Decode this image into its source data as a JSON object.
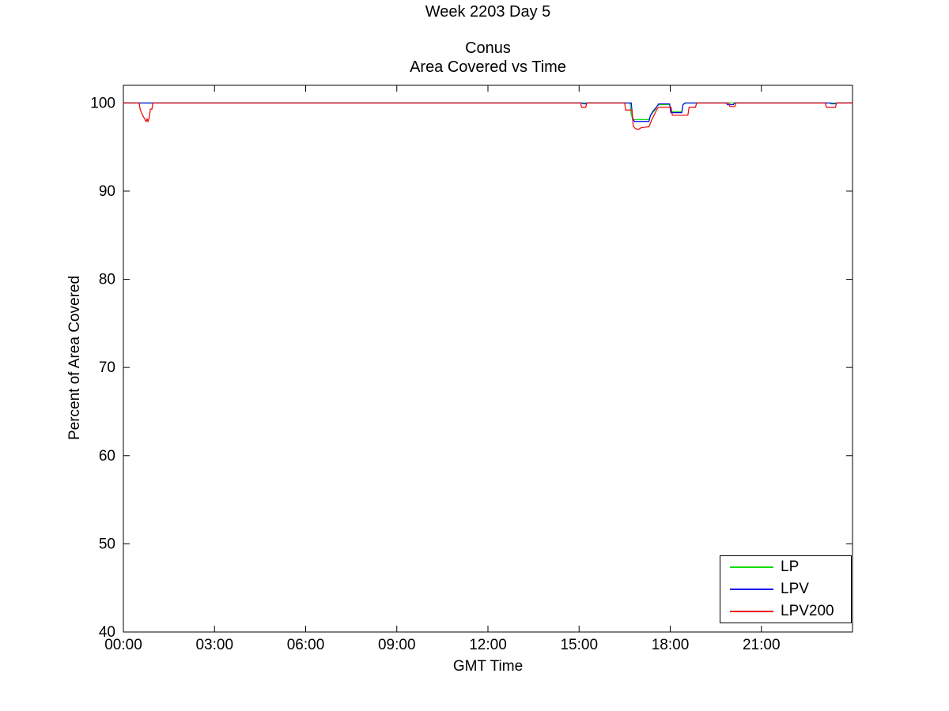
{
  "page": {
    "background": "#ffffff"
  },
  "titles": {
    "suptitle": "Week 2203 Day 5",
    "title_line1": "Conus",
    "title_line2": "Area Covered vs Time"
  },
  "axes": {
    "xlabel": "GMT Time",
    "ylabel": "Percent of Area Covered",
    "x_ticks": [
      {
        "hour": 0,
        "label": "00:00"
      },
      {
        "hour": 3,
        "label": "03:00"
      },
      {
        "hour": 6,
        "label": "06:00"
      },
      {
        "hour": 9,
        "label": "09:00"
      },
      {
        "hour": 12,
        "label": "12:00"
      },
      {
        "hour": 15,
        "label": "15:00"
      },
      {
        "hour": 18,
        "label": "18:00"
      },
      {
        "hour": 21,
        "label": "21:00"
      }
    ],
    "y_ticks": [
      40,
      50,
      60,
      70,
      80,
      90,
      100
    ],
    "axis_color": "#000000"
  },
  "chart_data": {
    "type": "line",
    "title": "Conus — Area Covered vs Time (Week 2203 Day 5)",
    "xlabel": "GMT Time",
    "ylabel": "Percent of Area Covered",
    "xlim": [
      0,
      24
    ],
    "ylim": [
      40,
      102
    ],
    "x_unit": "hours GMT",
    "grid": false,
    "legend_position": "bottom-right",
    "series": [
      {
        "name": "LP",
        "color": "#00dd00",
        "points": [
          [
            0,
            100
          ],
          [
            16.68,
            100
          ],
          [
            16.71,
            98.8
          ],
          [
            16.76,
            98.2
          ],
          [
            16.82,
            98.1
          ],
          [
            17.3,
            98.1
          ],
          [
            17.34,
            98.5
          ],
          [
            17.42,
            98.9
          ],
          [
            17.5,
            99.2
          ],
          [
            17.56,
            99.6
          ],
          [
            17.62,
            99.8
          ],
          [
            17.98,
            99.8
          ],
          [
            18.02,
            99.0
          ],
          [
            18.38,
            99.0
          ],
          [
            18.42,
            99.8
          ],
          [
            18.47,
            100
          ],
          [
            24,
            100
          ]
        ]
      },
      {
        "name": "LPV",
        "color": "#0000ee",
        "points": [
          [
            0,
            100
          ],
          [
            15.1,
            100
          ],
          [
            15.13,
            99.9
          ],
          [
            15.22,
            99.9
          ],
          [
            15.25,
            100
          ],
          [
            16.72,
            100
          ],
          [
            16.76,
            98.3
          ],
          [
            16.82,
            97.9
          ],
          [
            17.3,
            97.9
          ],
          [
            17.35,
            98.6
          ],
          [
            17.44,
            99.1
          ],
          [
            17.54,
            99.5
          ],
          [
            17.62,
            99.9
          ],
          [
            17.98,
            99.9
          ],
          [
            18.02,
            98.9
          ],
          [
            18.38,
            98.9
          ],
          [
            18.42,
            99.8
          ],
          [
            18.5,
            100
          ],
          [
            19.85,
            100
          ],
          [
            19.88,
            99.8
          ],
          [
            20.08,
            99.8
          ],
          [
            20.12,
            100
          ],
          [
            23.25,
            100
          ],
          [
            23.3,
            99.9
          ],
          [
            23.45,
            99.9
          ],
          [
            23.48,
            100
          ],
          [
            24,
            100
          ]
        ]
      },
      {
        "name": "LPV200",
        "color": "#ee0000",
        "points": [
          [
            0,
            100
          ],
          [
            0.52,
            100
          ],
          [
            0.55,
            99.3
          ],
          [
            0.62,
            98.7
          ],
          [
            0.7,
            98.2
          ],
          [
            0.75,
            97.9
          ],
          [
            0.78,
            98.2
          ],
          [
            0.81,
            97.9
          ],
          [
            0.85,
            98.3
          ],
          [
            0.89,
            99.3
          ],
          [
            0.94,
            99.3
          ],
          [
            0.97,
            100
          ],
          [
            15.05,
            100
          ],
          [
            15.08,
            99.5
          ],
          [
            15.22,
            99.5
          ],
          [
            15.25,
            100
          ],
          [
            16.5,
            100
          ],
          [
            16.53,
            99.2
          ],
          [
            16.74,
            99.2
          ],
          [
            16.78,
            97.4
          ],
          [
            16.85,
            97.1
          ],
          [
            16.95,
            97.0
          ],
          [
            17.05,
            97.2
          ],
          [
            17.3,
            97.3
          ],
          [
            17.38,
            98.0
          ],
          [
            17.48,
            98.7
          ],
          [
            17.58,
            99.4
          ],
          [
            17.62,
            99.5
          ],
          [
            18.03,
            99.5
          ],
          [
            18.07,
            98.6
          ],
          [
            18.58,
            98.6
          ],
          [
            18.62,
            99.5
          ],
          [
            18.83,
            99.5
          ],
          [
            18.87,
            100
          ],
          [
            19.93,
            100
          ],
          [
            19.96,
            99.6
          ],
          [
            20.13,
            99.6
          ],
          [
            20.16,
            100
          ],
          [
            23.1,
            100
          ],
          [
            23.14,
            99.5
          ],
          [
            23.44,
            99.5
          ],
          [
            23.47,
            100
          ],
          [
            24,
            100
          ]
        ]
      }
    ]
  }
}
